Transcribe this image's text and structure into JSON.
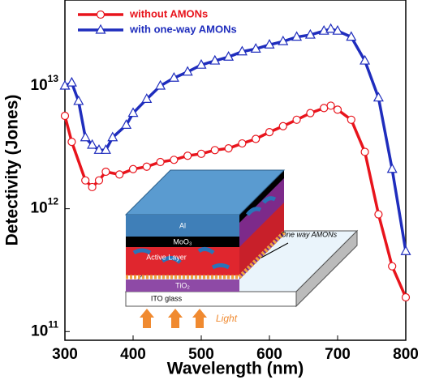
{
  "chart_data": {
    "type": "line",
    "x_label": "Wavelength (nm)",
    "y_label": "Detectivity (Jones)",
    "xlim": [
      300,
      800
    ],
    "xticks": [
      300,
      400,
      500,
      600,
      700,
      800
    ],
    "ylim": [
      85000000000,
      50000000000000
    ],
    "log_y": true,
    "yticks": [
      {
        "value": 100000000000,
        "label": "10",
        "exponent": "11"
      },
      {
        "value": 1000000000000,
        "label": "10",
        "exponent": "12"
      },
      {
        "value": 10000000000000,
        "label": "10",
        "exponent": "13"
      }
    ],
    "legend": "top-left",
    "series": [
      {
        "name": "without AMONs",
        "color": "#e8141c",
        "marker": "circle",
        "x": [
          300,
          310,
          330,
          340,
          350,
          360,
          380,
          400,
          420,
          440,
          460,
          480,
          500,
          520,
          540,
          560,
          580,
          600,
          620,
          640,
          660,
          680,
          690,
          700,
          720,
          740,
          760,
          780,
          800
        ],
        "values": [
          5700000000000.0,
          3500000000000.0,
          1700000000000.0,
          1500000000000.0,
          1700000000000.0,
          2000000000000.0,
          1900000000000.0,
          2100000000000.0,
          2200000000000.0,
          2400000000000.0,
          2500000000000.0,
          2700000000000.0,
          2800000000000.0,
          3000000000000.0,
          3100000000000.0,
          3400000000000.0,
          3700000000000.0,
          4200000000000.0,
          4700000000000.0,
          5300000000000.0,
          6000000000000.0,
          6600000000000.0,
          6900000000000.0,
          6400000000000.0,
          5300000000000.0,
          2900000000000.0,
          900000000000.0,
          340000000000.0,
          190000000000.0
        ]
      },
      {
        "name": "with one-way AMONs",
        "color": "#1f2dbd",
        "marker": "triangle",
        "x": [
          300,
          310,
          320,
          330,
          340,
          350,
          360,
          370,
          390,
          400,
          420,
          440,
          460,
          480,
          500,
          520,
          540,
          560,
          580,
          600,
          620,
          640,
          660,
          680,
          690,
          700,
          720,
          740,
          760,
          780,
          800
        ],
        "values": [
          10000000000000.0,
          10600000000000.0,
          7500000000000.0,
          3800000000000.0,
          3300000000000.0,
          3000000000000.0,
          3000000000000.0,
          3800000000000.0,
          4800000000000.0,
          6000000000000.0,
          7800000000000.0,
          10000000000000.0,
          11600000000000.0,
          13000000000000.0,
          14800000000000.0,
          16000000000000.0,
          17200000000000.0,
          19000000000000.0,
          20000000000000.0,
          21600000000000.0,
          23000000000000.0,
          25000000000000.0,
          26000000000000.0,
          28000000000000.0,
          29000000000000.0,
          28000000000000.0,
          25000000000000.0,
          16000000000000.0,
          8000000000000.0,
          2100000000000.0,
          450000000000.0
        ]
      }
    ]
  },
  "inset": {
    "al": "Al",
    "moo3": "MoO₃",
    "active_layer": "Active Layer",
    "tio2": "TiO₂",
    "ito_glass": "ITO glass",
    "amons_note": "One way AMONs",
    "light": "Light"
  }
}
